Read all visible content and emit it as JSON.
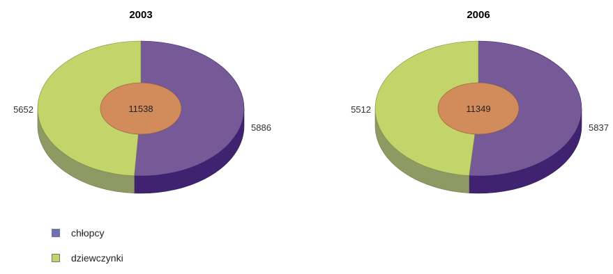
{
  "chart_data": [
    {
      "type": "pie",
      "title": "2003",
      "total": "11538",
      "slices": [
        {
          "name": "chłopcy",
          "value": 5886,
          "label": "5886"
        },
        {
          "name": "dziewczynki",
          "value": 5652,
          "label": "5652"
        }
      ]
    },
    {
      "type": "pie",
      "title": "2006",
      "total": "11349",
      "slices": [
        {
          "name": "chłopcy",
          "value": 5837,
          "label": "5837"
        },
        {
          "name": "dziewczynki",
          "value": 5512,
          "label": "5512"
        }
      ]
    }
  ],
  "legend": {
    "placement": "bottom-left",
    "items": [
      {
        "name": "chłopcy",
        "color": "#6f71b7"
      },
      {
        "name": "dziewczynki",
        "color": "#c2d46a"
      }
    ]
  },
  "colors": {
    "chlopcy_top": "#765a98",
    "chlopcy_side": "#3f2370",
    "dziewczynki_top": "#c2d46a",
    "dziewczynki_side": "#8e9a63",
    "center": "#d28c5c"
  }
}
